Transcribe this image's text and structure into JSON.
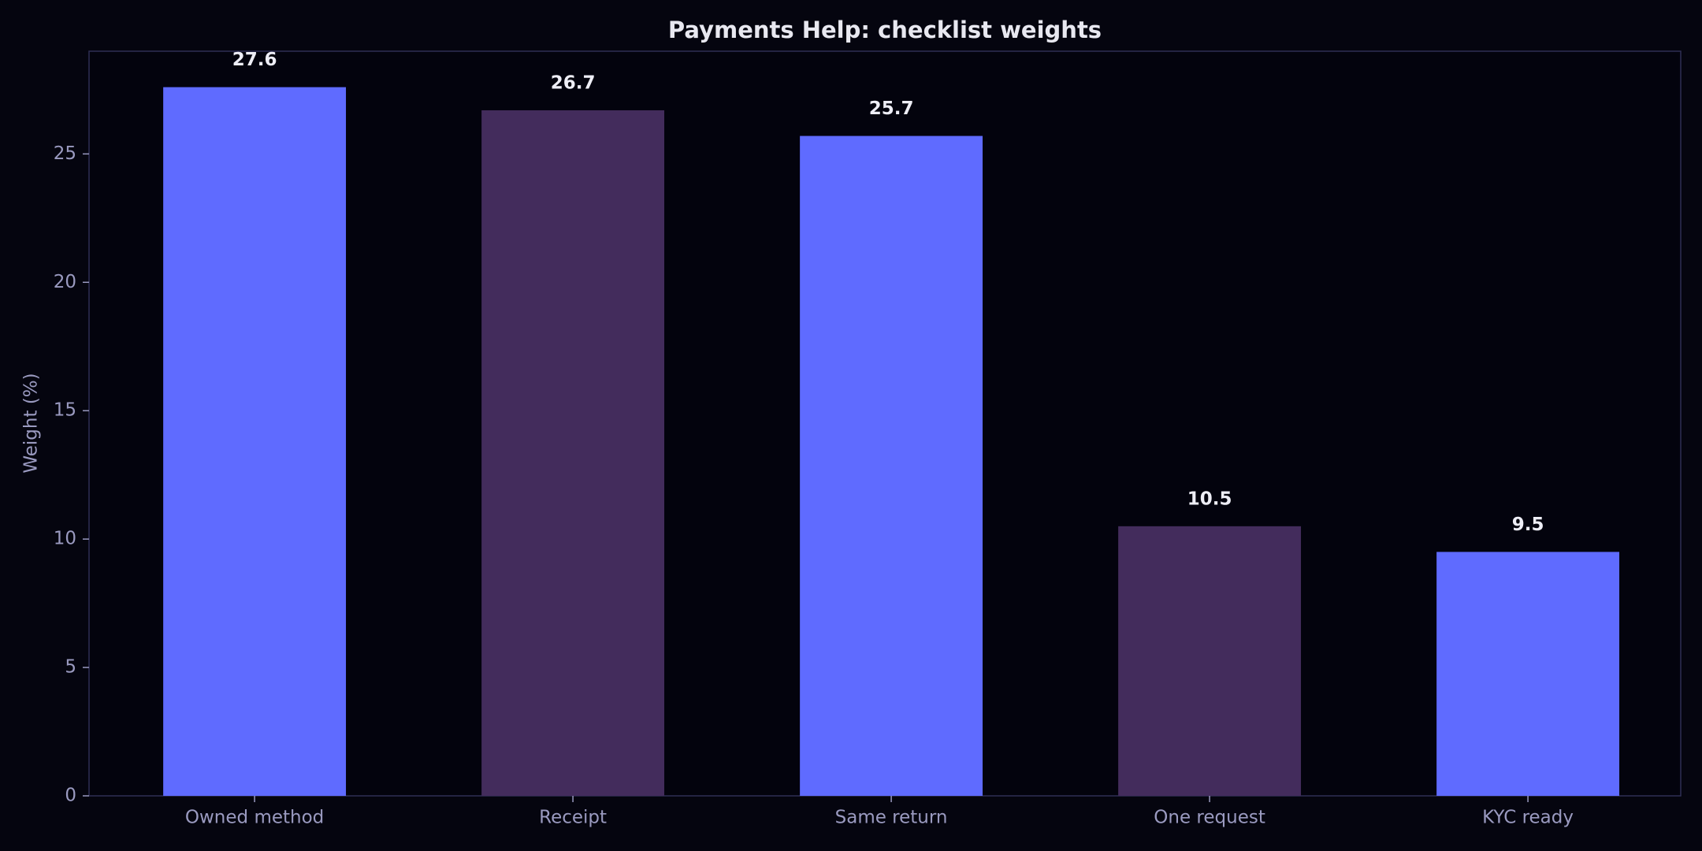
{
  "chart_data": {
    "type": "bar",
    "title": "Payments Help: checklist weights",
    "y_label": "Weight (%)",
    "categories": [
      "Owned method",
      "Receipt",
      "Same return",
      "One request",
      "KYC ready"
    ],
    "values": [
      27.6,
      26.7,
      25.7,
      10.5,
      9.5
    ],
    "colors": [
      "#5f6bff",
      "#432c5c",
      "#5f6bff",
      "#432c5c",
      "#5f6bff"
    ],
    "ylim": [
      0,
      29.0
    ],
    "yticks": [
      0,
      5,
      10,
      15,
      20,
      25
    ],
    "grid": false
  }
}
